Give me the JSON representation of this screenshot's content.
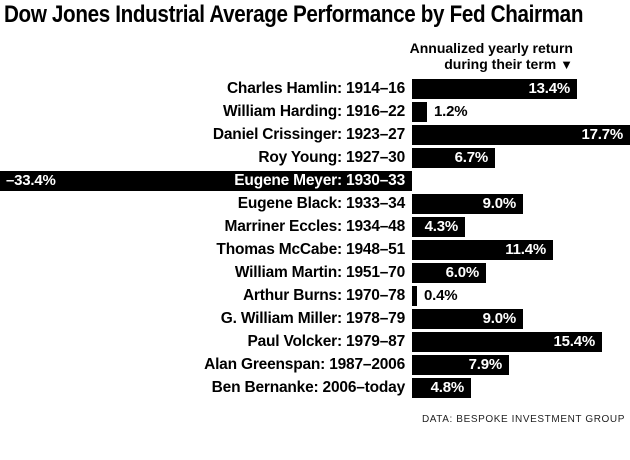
{
  "header": {
    "title": "Dow Jones Industrial Average Performance by Fed Chairman",
    "annotation_line1": "Annualized yearly return",
    "annotation_line2": "during their term",
    "annotation_arrow": "▼"
  },
  "footer": {
    "source": "DATA: BESPOKE INVESTMENT GROUP"
  },
  "colors": {
    "bar": "#000000",
    "background": "#ffffff",
    "label_text": "#000000",
    "bar_text": "#ffffff"
  },
  "chart_data": {
    "type": "bar",
    "orientation": "horizontal",
    "title": "Dow Jones Industrial Average Performance by Fed Chairman",
    "subtitle": "Annualized yearly return during their term",
    "unit": "%",
    "grid": false,
    "legend": "none",
    "xlim": [
      -33.4,
      17.7
    ],
    "categories": [
      "Charles Hamlin: 1914–16",
      "William Harding: 1916–22",
      "Daniel Crissinger: 1923–27",
      "Roy Young: 1927–30",
      "Eugene Meyer: 1930–33",
      "Eugene Black: 1933–34",
      "Marriner Eccles: 1934–48",
      "Thomas McCabe: 1948–51",
      "William Martin: 1951–70",
      "Arthur Burns: 1970–78",
      "G. William Miller: 1978–79",
      "Paul Volcker: 1979–87",
      "Alan Greenspan: 1987–2006",
      "Ben Bernanke: 2006–today"
    ],
    "values": [
      13.4,
      1.2,
      17.7,
      6.7,
      -33.4,
      9.0,
      4.3,
      11.4,
      6.0,
      0.4,
      9.0,
      15.4,
      7.9,
      4.8
    ],
    "value_labels": [
      "13.4%",
      "1.2%",
      "17.7%",
      "6.7%",
      "–33.4%",
      "9.0%",
      "4.3%",
      "11.4%",
      "6.0%",
      "0.4%",
      "9.0%",
      "15.4%",
      "7.9%",
      "4.8%"
    ]
  }
}
